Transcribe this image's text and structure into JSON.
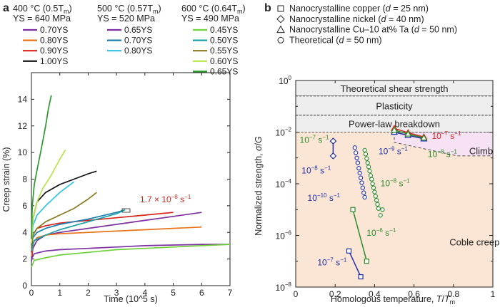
{
  "panel_a": {
    "label": "a",
    "groups": [
      {
        "title": "400 °C (0.5T",
        "title_sub": "m",
        "title_end": ")",
        "ys": "YS = 640 MPa",
        "legend": [
          {
            "label": "0.70YS",
            "color": "#7b2fa0"
          },
          {
            "label": "0.80YS",
            "color": "#e8731a"
          },
          {
            "label": "0.90YS",
            "color": "#d9221c"
          },
          {
            "label": "1.00YS",
            "color": "#111111"
          }
        ]
      },
      {
        "title": "500 °C (0.57T",
        "title_sub": "m",
        "title_end": ")",
        "ys": "YS = 520 MPa",
        "legend": [
          {
            "label": "0.65YS",
            "color": "#7b2fa0"
          },
          {
            "label": "0.70YS",
            "color": "#1b7fb0"
          },
          {
            "label": "0.80YS",
            "color": "#33c3e8"
          }
        ]
      },
      {
        "title": "600 °C (0.64T",
        "title_sub": "m",
        "title_end": ")",
        "ys": "YS = 490 MPa",
        "legend": [
          {
            "label": "0.45YS",
            "color": "#6fd03a"
          },
          {
            "label": "0.50YS",
            "color": "#1aa0a8"
          },
          {
            "label": "0.55YS",
            "color": "#8a7a22"
          },
          {
            "label": "0.60YS",
            "color": "#b6e64a"
          },
          {
            "label": "0.65YS",
            "color": "#2a9a2a"
          }
        ]
      }
    ],
    "annotation": "1.7 × 10",
    "annotation_exp": "−8",
    "annotation_unit": " s",
    "annotation_unit_exp": "−1",
    "annotation_color": "#d9221c"
  },
  "panel_b": {
    "label": "b",
    "legend": [
      {
        "marker": "square",
        "text": "Nanocrystalline copper (",
        "var": "d",
        "rest": " = 25 nm)"
      },
      {
        "marker": "diamond",
        "text": "Nanocrystalline nickel (",
        "var": "d",
        "rest": " = 40 nm)"
      },
      {
        "marker": "triangle",
        "text": "Nanocrystalline Cu–10 at% Ta (",
        "var": "d",
        "rest": " = 50 nm)"
      },
      {
        "marker": "circle",
        "text": "Theoretical (",
        "var": "d",
        "rest": " = 50 nm)"
      }
    ],
    "regions": [
      "Theoretical shear strength",
      "Plasticity",
      "Power-law breakdown",
      "Climb",
      "Coble creep"
    ],
    "rate_labels": [
      {
        "base": "10",
        "exp": "−7",
        "unit": " s",
        "uexp": "−1",
        "color": "#2a8a2a"
      },
      {
        "base": "10",
        "exp": "−8",
        "unit": " s",
        "uexp": "−1",
        "color": "#1f2fa8"
      },
      {
        "base": "10",
        "exp": "−10",
        "unit": " s",
        "uexp": "−1",
        "color": "#1f2fa8"
      },
      {
        "base": "10",
        "exp": "−8",
        "unit": " s",
        "uexp": "−1",
        "color": "#2a8a2a"
      },
      {
        "base": "10",
        "exp": "−6",
        "unit": " s",
        "uexp": "−1",
        "color": "#2a8a2a"
      },
      {
        "base": "10",
        "exp": "−7",
        "unit": " s",
        "uexp": "−1",
        "color": "#1f2fa8"
      },
      {
        "base": "10",
        "exp": "−9",
        "unit": " s",
        "uexp": "−1",
        "color": "#1f2fa8"
      },
      {
        "base": "10",
        "exp": "−7",
        "unit": " s",
        "uexp": "−1",
        "color": "#d9221c"
      },
      {
        "base": "10",
        "exp": "−8",
        "unit": " s",
        "uexp": "−1",
        "color": "#2a8a2a"
      }
    ]
  },
  "chart_data": [
    {
      "type": "line",
      "title": "",
      "xlabel": "Time (10^5 s)",
      "ylabel": "Creep strain (%)",
      "xlim": [
        0,
        7
      ],
      "ylim": [
        0,
        16
      ],
      "xticks": [
        "0",
        "1",
        "2",
        "3",
        "4",
        "5",
        "6",
        "7"
      ],
      "yticks": [
        "0",
        "2",
        "4",
        "6",
        "8",
        "10",
        "12",
        "14"
      ],
      "series": [
        {
          "name": "400 °C 0.70YS",
          "color": "#7b2fa0",
          "x": [
            0,
            0.05,
            0.2,
            0.5,
            1,
            2,
            3,
            4,
            5,
            6
          ],
          "y": [
            1.8,
            2.8,
            3.4,
            3.8,
            4.0,
            4.3,
            4.6,
            4.9,
            5.2,
            5.5
          ]
        },
        {
          "name": "400 °C 0.80YS",
          "color": "#e8731a",
          "x": [
            0,
            0.05,
            0.2,
            0.5,
            1,
            2,
            3,
            4,
            5,
            6
          ],
          "y": [
            2.2,
            3.2,
            3.6,
            3.8,
            3.9,
            4.0,
            4.1,
            4.2,
            4.3,
            4.4
          ]
        },
        {
          "name": "400 °C 0.90YS",
          "color": "#d9221c",
          "x": [
            0,
            0.05,
            0.2,
            0.5,
            1,
            2,
            3,
            4,
            5
          ],
          "y": [
            2.5,
            3.8,
            4.3,
            4.5,
            4.7,
            4.9,
            5.1,
            5.3,
            5.5
          ]
        },
        {
          "name": "400 °C 1.00YS",
          "color": "#111111",
          "x": [
            0,
            0.05,
            0.2,
            0.5,
            1,
            1.5,
            2,
            2.3
          ],
          "y": [
            3.0,
            5.0,
            6.3,
            7.0,
            7.6,
            8.0,
            8.4,
            8.6
          ]
        },
        {
          "name": "500 °C 0.65YS",
          "color": "#7b2fa0",
          "x": [
            0,
            0.1,
            0.5,
            1,
            2,
            3,
            4,
            5,
            6,
            7
          ],
          "y": [
            2.0,
            2.4,
            2.6,
            2.7,
            2.8,
            2.9,
            3.0,
            3.05,
            3.1,
            3.1
          ]
        },
        {
          "name": "500 °C 0.70YS",
          "color": "#1b7fb0",
          "x": [
            0,
            0.05,
            0.2,
            0.5,
            1,
            2,
            3,
            3.3
          ],
          "y": [
            2.8,
            3.6,
            4.0,
            4.3,
            4.6,
            5.0,
            5.5,
            5.7
          ]
        },
        {
          "name": "500 °C 0.80YS",
          "color": "#33c3e8",
          "x": [
            0,
            0.05,
            0.2,
            0.5,
            1,
            1.5
          ],
          "y": [
            3.0,
            4.5,
            5.3,
            6.0,
            7.0,
            7.8
          ]
        },
        {
          "name": "600 °C 0.45YS",
          "color": "#6fd03a",
          "x": [
            0,
            0.1,
            0.5,
            1,
            2,
            3,
            4,
            5,
            6,
            7
          ],
          "y": [
            1.4,
            1.9,
            2.1,
            2.3,
            2.5,
            2.7,
            2.8,
            2.9,
            3.0,
            3.1
          ]
        },
        {
          "name": "600 °C 0.50YS",
          "color": "#1aa0a8",
          "x": [
            0,
            0.1,
            0.5,
            1,
            2,
            3,
            3.3
          ],
          "y": [
            2.6,
            3.4,
            3.8,
            4.2,
            4.8,
            5.4,
            5.7
          ]
        },
        {
          "name": "600 °C 0.55YS",
          "color": "#8a7a22",
          "x": [
            0,
            0.05,
            0.2,
            0.5,
            1,
            1.5,
            2,
            2.3
          ],
          "y": [
            2.8,
            3.8,
            4.3,
            4.8,
            5.3,
            5.8,
            6.5,
            7.0
          ]
        },
        {
          "name": "600 °C 0.60YS",
          "color": "#b6e64a",
          "x": [
            0,
            0.05,
            0.2,
            0.4,
            0.7,
            1.0,
            1.2
          ],
          "y": [
            3.2,
            5.0,
            6.3,
            7.3,
            8.3,
            9.5,
            10.2
          ]
        },
        {
          "name": "600 °C 0.65YS",
          "color": "#2a9a2a",
          "x": [
            0,
            0.03,
            0.1,
            0.2,
            0.35,
            0.5,
            0.6,
            0.7
          ],
          "y": [
            3.5,
            6.0,
            7.6,
            8.7,
            10.3,
            12.0,
            13.3,
            14.3
          ]
        }
      ]
    },
    {
      "type": "scatter",
      "title": "",
      "xlabel": "Homologous temperature, T/Tm",
      "ylabel": "Normalized strength, σ/G",
      "xscale": "linear",
      "yscale": "log",
      "xlim": [
        0,
        1
      ],
      "ylim": [
        1e-08,
        1
      ],
      "xticks": [
        "0",
        "0.2",
        "0.4",
        "0.6",
        "0.8",
        "1"
      ],
      "yticks": [
        "10^−8",
        "10^−6",
        "10^−4",
        "10^−2",
        "10^0"
      ],
      "series": [
        {
          "name": "Nanocrystalline copper (d = 25 nm)",
          "marker": "square",
          "color": "#1f2fa8",
          "x": [
            0.27,
            0.33
          ],
          "y": [
            2.5e-07,
            2.5e-08
          ]
        },
        {
          "name": "Nanocrystalline copper (d = 25 nm)",
          "marker": "square",
          "color": "#2a8a2a",
          "x": [
            0.29,
            0.36
          ],
          "y": [
            1e-05,
            1e-07
          ]
        },
        {
          "name": "Nanocrystalline nickel (d = 40 nm)",
          "marker": "diamond",
          "color": "#1f2fa8",
          "x": [
            0.19,
            0.19
          ],
          "y": [
            0.0045,
            0.0012
          ]
        },
        {
          "name": "Nanocrystalline Cu–10 at% Ta (d = 50 nm)",
          "marker": "triangle",
          "color": "#1f2fa8",
          "x": [
            0.5,
            0.57,
            0.65
          ],
          "y": [
            0.01,
            0.0075,
            0.0055
          ]
        },
        {
          "name": "Nanocrystalline Cu–10 at% Ta (d = 50 nm)",
          "marker": "triangle",
          "color": "#d9221c",
          "x": [
            0.5,
            0.57,
            0.65
          ],
          "y": [
            0.014,
            0.0095,
            0.0065
          ]
        },
        {
          "name": "Nanocrystalline Cu–10 at% Ta (d = 50 nm)",
          "marker": "triangle",
          "color": "#2a8a2a",
          "x": [
            0.5,
            0.57,
            0.65
          ],
          "y": [
            0.012,
            0.0085,
            0.006
          ]
        },
        {
          "name": "Theoretical (d = 50 nm) 10^−10 s^−1",
          "marker": "circle",
          "color": "#1f2fa8",
          "x": [
            0.3,
            0.305,
            0.31,
            0.315,
            0.32,
            0.325,
            0.33,
            0.335,
            0.34,
            0.345,
            0.35
          ],
          "y": [
            0.0025,
            0.0016,
            0.001,
            0.00065,
            0.0004,
            0.00026,
            0.00017,
            0.00011,
            7e-05,
            4.5e-05,
            3e-05
          ]
        },
        {
          "name": "Theoretical (d = 50 nm) 10^−8 s^−1",
          "marker": "circle",
          "color": "#2a8a2a",
          "x": [
            0.35,
            0.355,
            0.36,
            0.365,
            0.37,
            0.375,
            0.38,
            0.385,
            0.39,
            0.395,
            0.4,
            0.405,
            0.41,
            0.415,
            0.42,
            0.43,
            0.44
          ],
          "y": [
            0.002,
            0.0014,
            0.00095,
            0.00065,
            0.00045,
            0.00031,
            0.00021,
            0.00015,
            0.0001,
            7e-05,
            4.8e-05,
            3.3e-05,
            2.3e-05,
            1.6e-05,
            1.1e-05,
            6e-06,
            1e-05
          ]
        }
      ]
    }
  ]
}
